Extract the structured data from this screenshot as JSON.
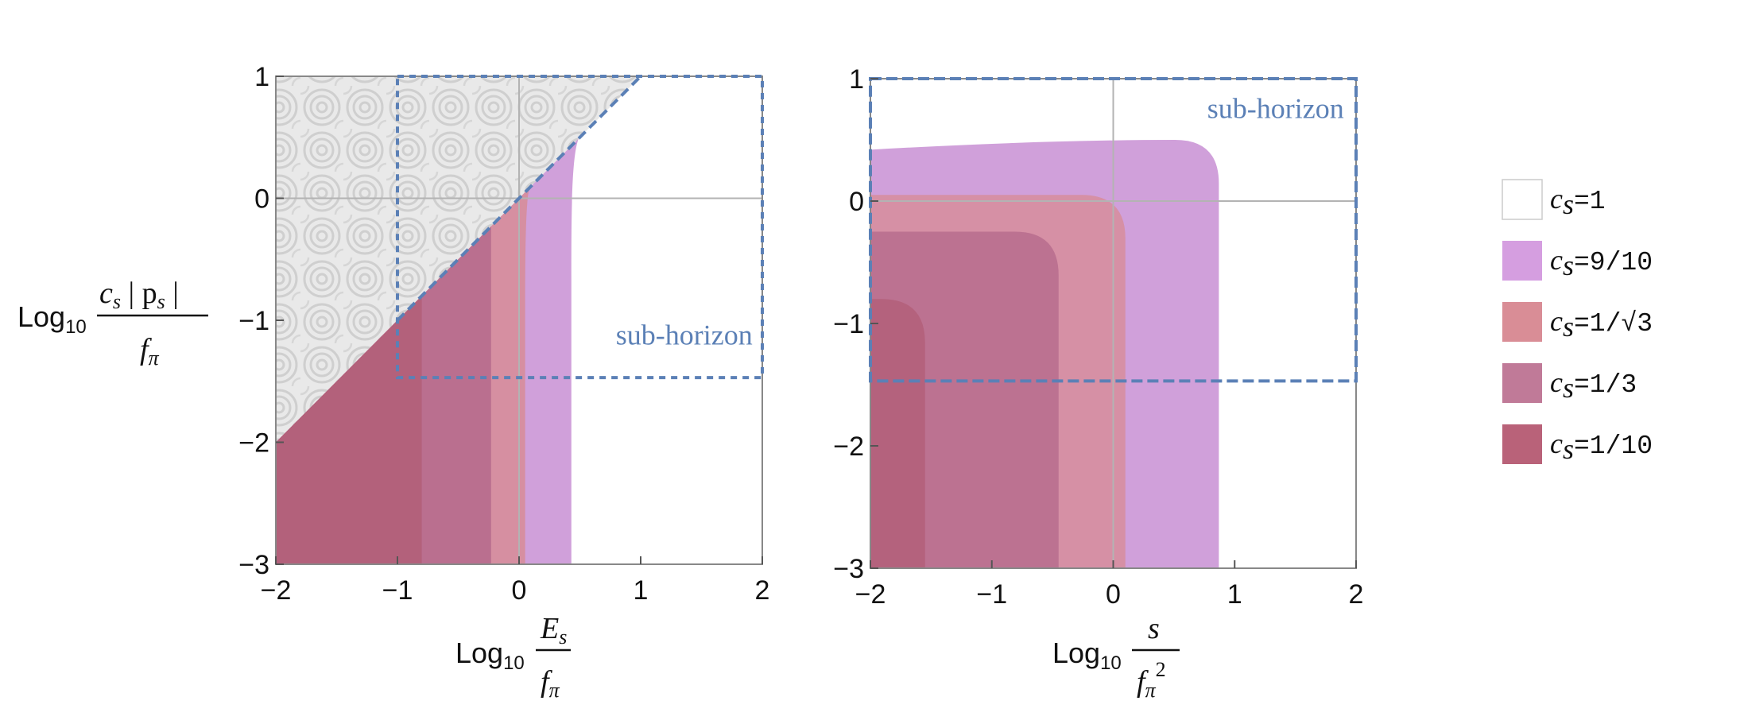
{
  "chart_data": [
    {
      "type": "area",
      "panel": "left",
      "xlabel": {
        "prefix": "Log",
        "sub": "10",
        "num": "E",
        "num_sub": "s",
        "den": "f",
        "den_sub": "π"
      },
      "ylabel": {
        "prefix": "Log",
        "sub": "10",
        "num": "c",
        "num_sub": "s",
        "mid": " | p",
        "mid_sub": "s",
        "mid_end": " |",
        "den": "f",
        "den_sub": "π"
      },
      "xlim": [
        -2,
        2
      ],
      "ylim": [
        -3,
        1
      ],
      "xticks": [
        "−2",
        "−1",
        "0",
        "1",
        "2"
      ],
      "yticks": [
        "−3",
        "−2",
        "−1",
        "0",
        "1"
      ],
      "grid_lines": {
        "x": [
          0
        ],
        "y": [
          0
        ]
      },
      "excluded_region": {
        "description_color": "#d9d9d9",
        "boundary": [
          [
            -2,
            -2
          ],
          [
            1,
            1
          ]
        ]
      },
      "series": [
        {
          "name": "cs=9/10",
          "color": "#c88fd4",
          "edge_x": 0.43,
          "top_point": [
            0.53,
            0.53
          ]
        },
        {
          "name": "cs=1/√3",
          "color": "#d78c97",
          "edge_x": 0.05,
          "top_point": [
            0.1,
            0.1
          ]
        },
        {
          "name": "cs=1/3",
          "color": "#b56a8c",
          "edge_x": -0.23,
          "top_point": [
            -0.23,
            -0.23
          ]
        },
        {
          "name": "cs=1/10",
          "color": "#b35f79",
          "edge_x": -0.8,
          "top_point": [
            -0.8,
            -0.8
          ]
        }
      ],
      "sub_horizon_box": {
        "x": [
          -1,
          2
        ],
        "y": [
          -1.47,
          1
        ]
      },
      "annotation": "sub-horizon"
    },
    {
      "type": "area",
      "panel": "right",
      "xlabel": {
        "prefix": "Log",
        "sub": "10",
        "num": "s",
        "den": "f",
        "den_sub": "π",
        "den_sup": "2"
      },
      "xlim": [
        -2,
        2
      ],
      "ylim": [
        -3,
        1
      ],
      "xticks": [
        "−2",
        "−1",
        "0",
        "1",
        "2"
      ],
      "yticks": [
        "−3",
        "−2",
        "−1",
        "0",
        "1"
      ],
      "grid_lines": {
        "x": [
          0
        ],
        "y": [
          0
        ]
      },
      "series": [
        {
          "name": "cs=9/10",
          "color": "#c88fd4",
          "right_x": 0.87,
          "top_y": 0.5
        },
        {
          "name": "cs=1/√3",
          "color": "#d78c97",
          "right_x": 0.1,
          "top_y": 0.05
        },
        {
          "name": "cs=1/3",
          "color": "#b56a8c",
          "right_x": -0.45,
          "top_y": -0.25
        },
        {
          "name": "cs=1/10",
          "color": "#b35f79",
          "right_x": -1.55,
          "top_y": -0.8
        }
      ],
      "sub_horizon_box": {
        "x": [
          -2,
          2
        ],
        "y": [
          -1.47,
          1
        ]
      },
      "annotation": "sub-horizon"
    }
  ],
  "legend": {
    "placement": "right",
    "entries": [
      {
        "var": "c",
        "sub": "s",
        "value": "=1",
        "color": "#ffffff"
      },
      {
        "var": "c",
        "sub": "s",
        "value": "=9/10",
        "color": "#d59ee0"
      },
      {
        "var": "c",
        "sub": "s",
        "value": "=1/√3",
        "color": "#d98d96"
      },
      {
        "var": "c",
        "sub": "s",
        "value": "=1/3",
        "color": "#c07a98"
      },
      {
        "var": "c",
        "sub": "s",
        "value": "=1/10",
        "color": "#b96279"
      }
    ]
  },
  "colors": {
    "dashed": "#5b80b6",
    "frame": "#888888",
    "grid": "#b3b3b3"
  }
}
